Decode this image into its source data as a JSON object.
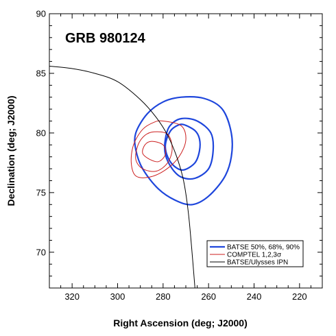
{
  "chart_data": {
    "type": "line",
    "annotation": "GRB 980124",
    "xlabel": "Right Ascension (deg; J2000)",
    "ylabel": "Declination (deg; J2000)",
    "xlim": [
      330,
      210
    ],
    "ylim": [
      67,
      90
    ],
    "xticks": [
      320,
      300,
      280,
      260,
      240,
      220
    ],
    "yticks": [
      70,
      75,
      80,
      85,
      90
    ],
    "grid": false,
    "legend_position": "bottom-right",
    "series": [
      {
        "name": "BATSE 50%, 68%, 90%",
        "color": "#1e46dc",
        "contours": [
          [
            [
              271,
              80.7
            ],
            [
              266,
              80.2
            ],
            [
              264,
              79.5
            ],
            [
              264,
              78.5
            ],
            [
              266,
              77.5
            ],
            [
              271,
              76.9
            ],
            [
              275,
              77.2
            ],
            [
              278,
              78.0
            ],
            [
              279,
              79.0
            ],
            [
              277,
              80.1
            ],
            [
              274,
              80.6
            ],
            [
              271,
              80.7
            ]
          ],
          [
            [
              272,
              81.2
            ],
            [
              265,
              81.0
            ],
            [
              259,
              80.0
            ],
            [
              258,
              78.5
            ],
            [
              260,
              77.0
            ],
            [
              266,
              76.2
            ],
            [
              272,
              76.3
            ],
            [
              276,
              77.0
            ],
            [
              279,
              78.2
            ],
            [
              279,
              79.5
            ],
            [
              277,
              80.6
            ],
            [
              272,
              81.2
            ]
          ],
          [
            [
              272,
              83.0
            ],
            [
              262,
              82.9
            ],
            [
              254,
              82.0
            ],
            [
              250,
              80.0
            ],
            [
              250,
              78.0
            ],
            [
              253,
              76.3
            ],
            [
              260,
              74.7
            ],
            [
              267,
              74.0
            ],
            [
              274,
              74.3
            ],
            [
              282,
              75.3
            ],
            [
              289,
              77.0
            ],
            [
              292,
              78.6
            ],
            [
              292,
              80.0
            ],
            [
              287,
              81.6
            ],
            [
              280,
              82.6
            ],
            [
              272,
              83.0
            ]
          ]
        ]
      },
      {
        "name": "COMPTEL 1,2,3σ",
        "color": "#cc1e1e",
        "contours": [
          [
            [
              285,
              79.3
            ],
            [
              280,
              79.0
            ],
            [
              279,
              78.2
            ],
            [
              282,
              77.6
            ],
            [
              286,
              77.8
            ],
            [
              289,
              78.3
            ],
            [
              288,
              79.0
            ],
            [
              285,
              79.3
            ]
          ],
          [
            [
              284,
              80.1
            ],
            [
              278,
              79.9
            ],
            [
              276,
              78.7
            ],
            [
              278,
              77.5
            ],
            [
              283,
              76.8
            ],
            [
              289,
              77.0
            ],
            [
              292,
              77.8
            ],
            [
              291,
              79.0
            ],
            [
              288,
              79.8
            ],
            [
              284,
              80.1
            ]
          ],
          [
            [
              280,
              81.0
            ],
            [
              272,
              80.6
            ],
            [
              270,
              79.4
            ],
            [
              273,
              78.0
            ],
            [
              279,
              76.9
            ],
            [
              286,
              76.3
            ],
            [
              292,
              76.4
            ],
            [
              294,
              77.5
            ],
            [
              293,
              79.0
            ],
            [
              289,
              80.3
            ],
            [
              284,
              80.9
            ],
            [
              280,
              81.0
            ]
          ]
        ]
      },
      {
        "name": "BATSE/Ulysses IPN",
        "color": "#000000",
        "contours": [
          [
            [
              330,
              85.6
            ],
            [
              320,
              85.4
            ],
            [
              310,
              85.0
            ],
            [
              300,
              84.3
            ],
            [
              290,
              82.8
            ],
            [
              283,
              81.3
            ],
            [
              278,
              79.8
            ],
            [
              274,
              78.0
            ],
            [
              271,
              76.0
            ],
            [
              269,
              73.5
            ],
            [
              267.5,
              70.5
            ],
            [
              266,
              67
            ]
          ]
        ]
      }
    ]
  }
}
